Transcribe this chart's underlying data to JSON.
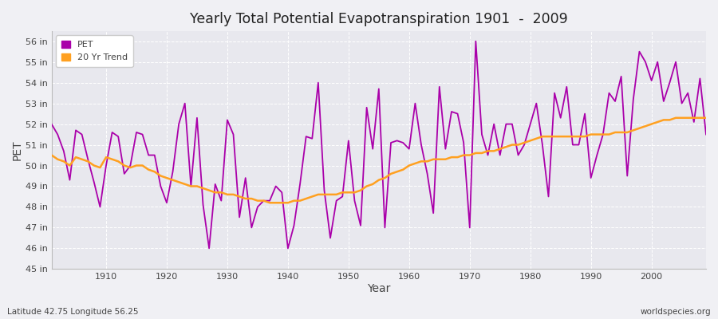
{
  "title": "Yearly Total Potential Evapotranspiration 1901  -  2009",
  "xlabel": "Year",
  "ylabel": "PET",
  "subtitle_left": "Latitude 42.75 Longitude 56.25",
  "subtitle_right": "worldspecies.org",
  "ylim": [
    45,
    56.5
  ],
  "xlim": [
    1901,
    2009
  ],
  "ytick_labels": [
    "45 in",
    "46 in",
    "47 in",
    "48 in",
    "49 in",
    "50 in",
    "51 in",
    "52 in",
    "53 in",
    "54 in",
    "55 in",
    "56 in"
  ],
  "ytick_values": [
    45,
    46,
    47,
    48,
    49,
    50,
    51,
    52,
    53,
    54,
    55,
    56
  ],
  "xtick_values": [
    1910,
    1920,
    1930,
    1940,
    1950,
    1960,
    1970,
    1980,
    1990,
    2000
  ],
  "pet_color": "#AA00AA",
  "trend_color": "#FFA020",
  "fig_bg_color": "#F0F0F4",
  "plot_bg_color": "#E8E8EE",
  "grid_color": "#FFFFFF",
  "text_color": "#444444",
  "years": [
    1901,
    1902,
    1903,
    1904,
    1905,
    1906,
    1907,
    1908,
    1909,
    1910,
    1911,
    1912,
    1913,
    1914,
    1915,
    1916,
    1917,
    1918,
    1919,
    1920,
    1921,
    1922,
    1923,
    1924,
    1925,
    1926,
    1927,
    1928,
    1929,
    1930,
    1931,
    1932,
    1933,
    1934,
    1935,
    1936,
    1937,
    1938,
    1939,
    1940,
    1941,
    1942,
    1943,
    1944,
    1945,
    1946,
    1947,
    1948,
    1949,
    1950,
    1951,
    1952,
    1953,
    1954,
    1955,
    1956,
    1957,
    1958,
    1959,
    1960,
    1961,
    1962,
    1963,
    1964,
    1965,
    1966,
    1967,
    1968,
    1969,
    1970,
    1971,
    1972,
    1973,
    1974,
    1975,
    1976,
    1977,
    1978,
    1979,
    1980,
    1981,
    1982,
    1983,
    1984,
    1985,
    1986,
    1987,
    1988,
    1989,
    1990,
    1991,
    1992,
    1993,
    1994,
    1995,
    1996,
    1997,
    1998,
    1999,
    2000,
    2001,
    2002,
    2003,
    2004,
    2005,
    2006,
    2007,
    2008,
    2009
  ],
  "pet_values": [
    52.0,
    51.5,
    50.7,
    49.3,
    51.7,
    51.5,
    50.3,
    49.2,
    48.0,
    50.0,
    51.6,
    51.4,
    49.6,
    50.0,
    51.6,
    51.5,
    50.5,
    50.5,
    49.0,
    48.2,
    49.7,
    52.0,
    53.0,
    49.0,
    52.3,
    48.1,
    46.0,
    49.1,
    48.3,
    52.2,
    51.5,
    47.5,
    49.4,
    47.0,
    48.0,
    48.3,
    48.3,
    49.0,
    48.7,
    46.0,
    47.1,
    49.1,
    51.4,
    51.3,
    54.0,
    48.8,
    46.5,
    48.3,
    48.5,
    51.2,
    48.3,
    47.1,
    52.8,
    50.8,
    53.7,
    47.0,
    51.1,
    51.2,
    51.1,
    50.8,
    53.0,
    51.0,
    49.6,
    47.7,
    53.8,
    50.8,
    52.6,
    52.5,
    51.1,
    47.0,
    56.0,
    51.5,
    50.5,
    52.0,
    50.5,
    52.0,
    52.0,
    50.5,
    51.0,
    52.0,
    53.0,
    51.0,
    48.5,
    53.5,
    52.3,
    53.8,
    51.0,
    51.0,
    52.5,
    49.4,
    50.5,
    51.5,
    53.5,
    53.1,
    54.3,
    49.5,
    53.2,
    55.5,
    55.0,
    54.1,
    55.0,
    53.1,
    54.0,
    55.0,
    53.0,
    53.5,
    52.1,
    54.2,
    51.5
  ],
  "trend_values": [
    50.5,
    50.3,
    50.2,
    50.0,
    50.4,
    50.3,
    50.2,
    50.0,
    49.9,
    50.4,
    50.3,
    50.2,
    50.0,
    49.9,
    50.0,
    50.0,
    49.8,
    49.7,
    49.5,
    49.4,
    49.3,
    49.2,
    49.1,
    49.0,
    49.0,
    48.9,
    48.8,
    48.7,
    48.7,
    48.6,
    48.6,
    48.5,
    48.4,
    48.4,
    48.3,
    48.3,
    48.2,
    48.2,
    48.2,
    48.2,
    48.3,
    48.3,
    48.4,
    48.5,
    48.6,
    48.6,
    48.6,
    48.6,
    48.7,
    48.7,
    48.7,
    48.8,
    49.0,
    49.1,
    49.3,
    49.4,
    49.6,
    49.7,
    49.8,
    50.0,
    50.1,
    50.2,
    50.2,
    50.3,
    50.3,
    50.3,
    50.4,
    50.4,
    50.5,
    50.5,
    50.6,
    50.6,
    50.7,
    50.7,
    50.8,
    50.9,
    51.0,
    51.0,
    51.1,
    51.2,
    51.3,
    51.4,
    51.4,
    51.4,
    51.4,
    51.4,
    51.4,
    51.4,
    51.4,
    51.5,
    51.5,
    51.5,
    51.5,
    51.6,
    51.6,
    51.6,
    51.7,
    51.8,
    51.9,
    52.0,
    52.1,
    52.2,
    52.2,
    52.3,
    52.3,
    52.3,
    52.3,
    52.3,
    52.3
  ]
}
